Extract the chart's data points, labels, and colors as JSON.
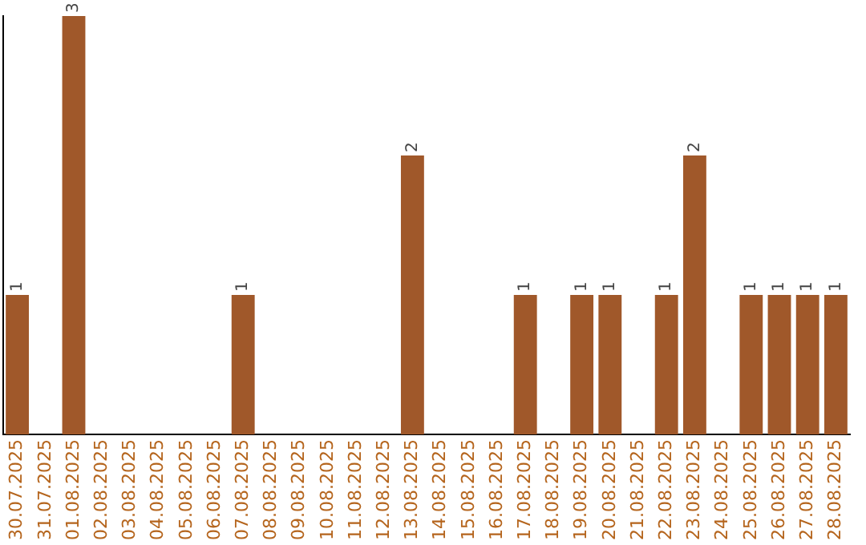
{
  "chart_data": {
    "type": "bar",
    "categories": [
      "30.07.2025",
      "31.07.2025",
      "01.08.2025",
      "02.08.2025",
      "03.08.2025",
      "04.08.2025",
      "05.08.2025",
      "06.08.2025",
      "07.08.2025",
      "08.08.2025",
      "09.08.2025",
      "10.08.2025",
      "11.08.2025",
      "12.08.2025",
      "13.08.2025",
      "14.08.2025",
      "15.08.2025",
      "16.08.2025",
      "17.08.2025",
      "18.08.2025",
      "19.08.2025",
      "20.08.2025",
      "21.08.2025",
      "22.08.2025",
      "23.08.2025",
      "24.08.2025",
      "25.08.2025",
      "26.08.2025",
      "27.08.2025",
      "28.08.2025"
    ],
    "values": [
      1,
      0,
      3,
      0,
      0,
      0,
      0,
      0,
      1,
      0,
      0,
      0,
      0,
      0,
      2,
      0,
      0,
      0,
      1,
      0,
      1,
      1,
      0,
      1,
      2,
      0,
      1,
      1,
      1,
      1
    ],
    "value_labels": [
      "1",
      null,
      "3",
      null,
      null,
      null,
      null,
      null,
      "1",
      null,
      null,
      null,
      null,
      null,
      "2",
      null,
      null,
      null,
      "1",
      null,
      "1",
      "1",
      null,
      "1",
      "2",
      null,
      "1",
      "1",
      "1",
      "1"
    ],
    "color": "#a0582a",
    "grid": false,
    "legend": false,
    "tick_labels": "x"
  }
}
